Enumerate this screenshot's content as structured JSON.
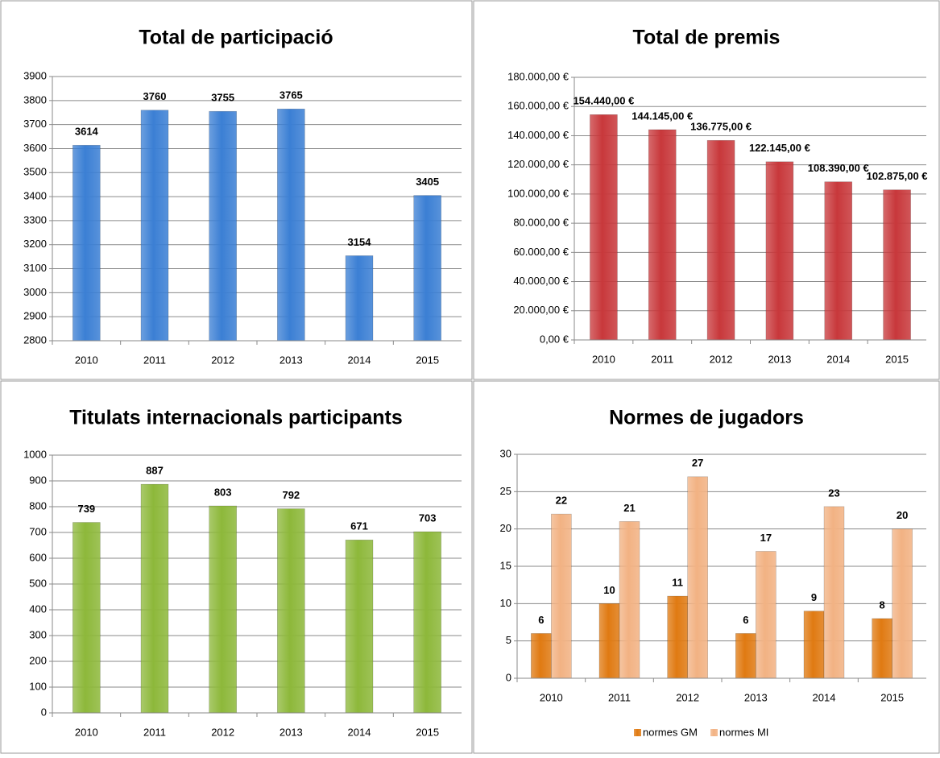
{
  "chart_data": [
    {
      "type": "bar",
      "title": "Total de participació",
      "categories": [
        "2010",
        "2011",
        "2012",
        "2013",
        "2014",
        "2015"
      ],
      "values": [
        3614,
        3760,
        3755,
        3765,
        3154,
        3405
      ],
      "color": "#3b7fd4",
      "ylim": [
        2800,
        3900
      ],
      "yticks": [
        2800,
        2900,
        3000,
        3100,
        3200,
        3300,
        3400,
        3500,
        3600,
        3700,
        3800,
        3900
      ],
      "grid": true
    },
    {
      "type": "bar",
      "title": "Total de premis",
      "categories": [
        "2010",
        "2011",
        "2012",
        "2013",
        "2014",
        "2015"
      ],
      "values": [
        154440,
        144145,
        136775,
        122145,
        108390,
        102875
      ],
      "value_labels": [
        "154.440,00 €",
        "144.145,00 €",
        "136.775,00 €",
        "122.145,00 €",
        "108.390,00 €",
        "102.875,00 €"
      ],
      "color": "#c8383b",
      "ylim": [
        0,
        180000
      ],
      "yticks": [
        {
          "value": 0,
          "label": "0,00 €"
        },
        {
          "value": 20000,
          "label": "20.000,00 €"
        },
        {
          "value": 40000,
          "label": "40.000,00 €"
        },
        {
          "value": 60000,
          "label": "60.000,00 €"
        },
        {
          "value": 80000,
          "label": "80.000,00 €"
        },
        {
          "value": 100000,
          "label": "100.000,00 €"
        },
        {
          "value": 120000,
          "label": "120.000,00 €"
        },
        {
          "value": 140000,
          "label": "140.000,00 €"
        },
        {
          "value": 160000,
          "label": "160.000,00 €"
        },
        {
          "value": 180000,
          "label": "180.000,00 €"
        }
      ],
      "grid": true
    },
    {
      "type": "bar",
      "title": "Titulats internacionals participants",
      "categories": [
        "2010",
        "2011",
        "2012",
        "2013",
        "2014",
        "2015"
      ],
      "values": [
        739,
        887,
        803,
        792,
        671,
        703
      ],
      "color": "#8db83a",
      "ylim": [
        0,
        1000
      ],
      "yticks": [
        0,
        100,
        200,
        300,
        400,
        500,
        600,
        700,
        800,
        900,
        1000
      ],
      "grid": true
    },
    {
      "type": "grouped_bar",
      "title": "Normes de jugadors",
      "categories": [
        "2010",
        "2011",
        "2012",
        "2013",
        "2014",
        "2015"
      ],
      "series": [
        {
          "name": "normes GM",
          "color": "#e07a12",
          "values": [
            6,
            10,
            11,
            6,
            9,
            8
          ]
        },
        {
          "name": "normes MI",
          "color": "#f2b283",
          "values": [
            22,
            21,
            27,
            17,
            23,
            20
          ]
        }
      ],
      "ylim": [
        0,
        30
      ],
      "yticks": [
        0,
        5,
        10,
        15,
        20,
        25,
        30
      ],
      "grid": true,
      "legend": "bottom"
    }
  ]
}
